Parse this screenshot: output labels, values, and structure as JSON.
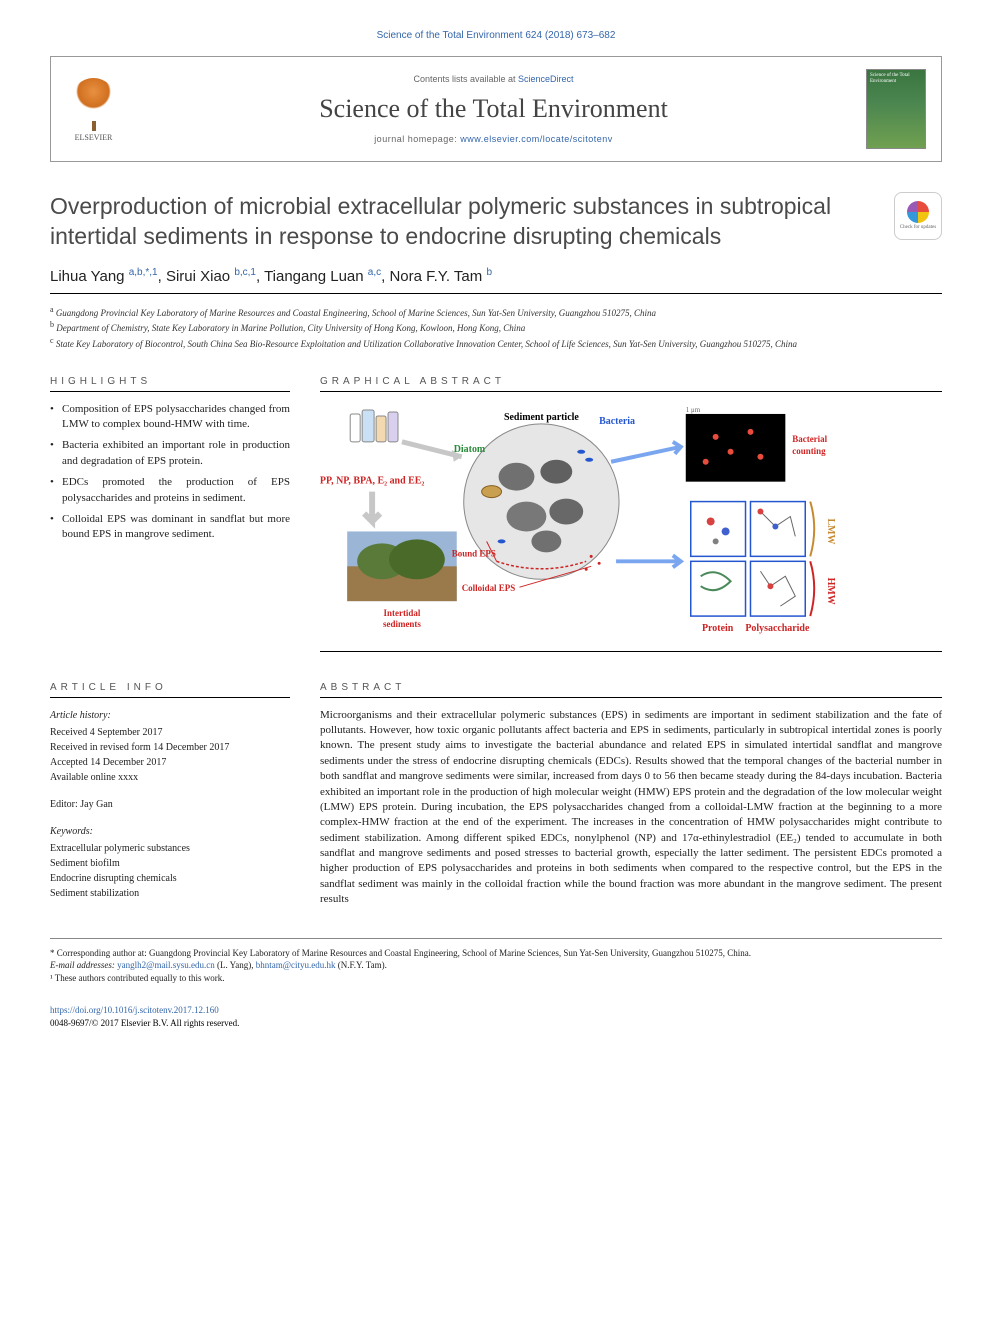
{
  "running_head": "Science of the Total Environment 624 (2018) 673–682",
  "header": {
    "publisher": "ELSEVIER",
    "contents_prefix": "Contents lists available at ",
    "contents_link": "ScienceDirect",
    "journal_name": "Science of the Total Environment",
    "homepage_prefix": "journal homepage: ",
    "homepage_url": "www.elsevier.com/locate/scitotenv",
    "cover_text": "Science of the Total Environment"
  },
  "title": "Overproduction of microbial extracellular polymeric substances in subtropical intertidal sediments in response to endocrine disrupting chemicals",
  "crossmark": "Check for updates",
  "authors_html": "Lihua Yang <sup>a,b,*,1</sup>, Sirui Xiao <sup>b,c,1</sup>, Tiangang Luan <sup>a,c</sup>, Nora F.Y. Tam <sup>b</sup>",
  "affiliations": [
    {
      "key": "a",
      "text": "Guangdong Provincial Key Laboratory of Marine Resources and Coastal Engineering, School of Marine Sciences, Sun Yat-Sen University, Guangzhou 510275, China"
    },
    {
      "key": "b",
      "text": "Department of Chemistry, State Key Laboratory in Marine Pollution, City University of Hong Kong, Kowloon, Hong Kong, China"
    },
    {
      "key": "c",
      "text": "State Key Laboratory of Biocontrol, South China Sea Bio-Resource Exploitation and Utilization Collaborative Innovation Center, School of Life Sciences, Sun Yat-Sen University, Guangzhou 510275, China"
    }
  ],
  "sections": {
    "highlights": "HIGHLIGHTS",
    "graphical": "GRAPHICAL ABSTRACT",
    "articleinfo": "ARTICLE INFO",
    "abstract": "ABSTRACT"
  },
  "highlights": [
    "Composition of EPS polysaccharides changed from LMW to complex bound-HMW with time.",
    "Bacteria exhibited an important role in production and degradation of EPS protein.",
    "EDCs promoted the production of EPS polysaccharides and proteins in sediment.",
    "Colloidal EPS was dominant in sandflat but more bound EPS in mangrove sediment."
  ],
  "graphical": {
    "labels": {
      "sediment_particle": "Sediment particle",
      "bacteria": "Bacteria",
      "diatom": "Diatom",
      "bacterial_counting": "Bacterial counting",
      "chemicals": "PP, NP, BPA, E₂ and EE₂",
      "bound_eps": "Bound EPS",
      "colloidal_eps": "Colloidal EPS",
      "intertidal": "Intertidal sediments",
      "protein": "Protein",
      "polysaccharide": "Polysaccharide",
      "lmw": "LMW",
      "hmw": "HMW"
    },
    "colors": {
      "blue": "#2456cf",
      "red": "#cf2424",
      "green": "#2a8c3a",
      "arrow_blue": "#7aa6f0",
      "arrow_grey": "#c7c7c7",
      "circle_fill": "#e6e6e6",
      "black_box": "#000000",
      "red_dots": "#e74c3c",
      "mangrove_green": "#5a7a3a",
      "mangrove_brown": "#9a7a4a"
    }
  },
  "article_info": {
    "history_head": "Article history:",
    "history": [
      "Received 4 September 2017",
      "Received in revised form 14 December 2017",
      "Accepted 14 December 2017",
      "Available online xxxx"
    ],
    "editor_label": "Editor:",
    "editor": "Jay Gan",
    "keywords_head": "Keywords:",
    "keywords": [
      "Extracellular polymeric substances",
      "Sediment biofilm",
      "Endocrine disrupting chemicals",
      "Sediment stabilization"
    ]
  },
  "abstract": "Microorganisms and their extracellular polymeric substances (EPS) in sediments are important in sediment stabilization and the fate of pollutants. However, how toxic organic pollutants affect bacteria and EPS in sediments, particularly in subtropical intertidal zones is poorly known. The present study aims to investigate the bacterial abundance and related EPS in simulated intertidal sandflat and mangrove sediments under the stress of endocrine disrupting chemicals (EDCs). Results showed that the temporal changes of the bacterial number in both sandflat and mangrove sediments were similar, increased from days 0 to 56 then became steady during the 84-days incubation. Bacteria exhibited an important role in the production of high molecular weight (HMW) EPS protein and the degradation of the low molecular weight (LMW) EPS protein. During incubation, the EPS polysaccharides changed from a colloidal-LMW fraction at the beginning to a more complex-HMW fraction at the end of the experiment. The increases in the concentration of HMW polysaccharides might contribute to sediment stabilization. Among different spiked EDCs, nonylphenol (NP) and 17α-ethinylestradiol (EE₂) tended to accumulate in both sandflat and mangrove sediments and posed stresses to bacterial growth, especially the latter sediment. The persistent EDCs promoted a higher production of EPS polysaccharides and proteins in both sediments when compared to the respective control, but the EPS in the sandflat sediment was mainly in the colloidal fraction while the bound fraction was more abundant in the mangrove sediment. The present results",
  "footnotes": {
    "corresponding": "* Corresponding author at: Guangdong Provincial Key Laboratory of Marine Resources and Coastal Engineering, School of Marine Sciences, Sun Yat-Sen University, Guangzhou 510275, China.",
    "email_label": "E-mail addresses:",
    "emails": [
      {
        "addr": "yanglh2@mail.sysu.edu.cn",
        "who": "(L. Yang)"
      },
      {
        "addr": "bhntam@cityu.edu.hk",
        "who": "(N.F.Y. Tam)"
      }
    ],
    "equal": "¹ These authors contributed equally to this work."
  },
  "doi": {
    "url": "https://doi.org/10.1016/j.scitotenv.2017.12.160",
    "issn_line": "0048-9697/© 2017 Elsevier B.V. All rights reserved."
  }
}
